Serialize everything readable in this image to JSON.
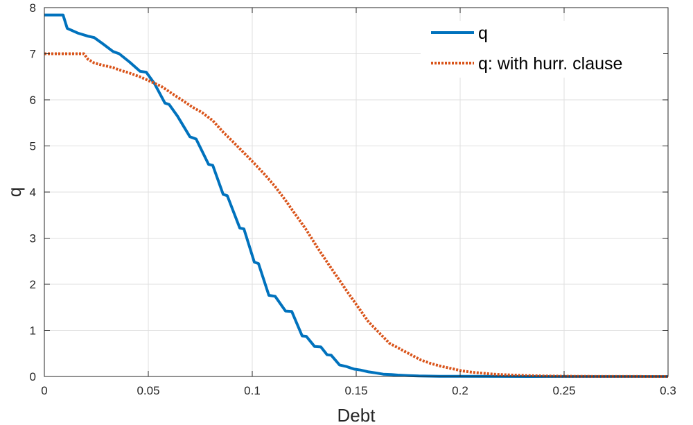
{
  "chart_data": {
    "type": "line",
    "title": "",
    "xlabel": "Debt",
    "ylabel": "q",
    "xlim": [
      0,
      0.3
    ],
    "ylim": [
      0,
      8
    ],
    "xticks": [
      0,
      0.05,
      0.1,
      0.15,
      0.2,
      0.25,
      0.3
    ],
    "xtick_labels": [
      "0",
      "0.05",
      "0.1",
      "0.15",
      "0.2",
      "0.25",
      "0.3"
    ],
    "yticks": [
      0,
      1,
      2,
      3,
      4,
      5,
      6,
      7,
      8
    ],
    "ytick_labels": [
      "0",
      "1",
      "2",
      "3",
      "4",
      "5",
      "6",
      "7",
      "8"
    ],
    "grid": true,
    "legend_position": "top-right",
    "series": [
      {
        "name": "q",
        "color": "#0072BD",
        "style": "solid",
        "x": [
          0,
          0.009,
          0.011,
          0.016,
          0.021,
          0.024,
          0.028,
          0.033,
          0.036,
          0.041,
          0.046,
          0.049,
          0.053,
          0.058,
          0.06,
          0.064,
          0.07,
          0.073,
          0.079,
          0.081,
          0.086,
          0.088,
          0.094,
          0.096,
          0.101,
          0.103,
          0.108,
          0.111,
          0.116,
          0.119,
          0.124,
          0.126,
          0.13,
          0.133,
          0.136,
          0.138,
          0.142,
          0.145,
          0.149,
          0.152,
          0.156,
          0.159,
          0.163,
          0.167,
          0.17,
          0.175,
          0.18,
          0.19,
          0.2,
          0.22,
          0.25,
          0.3
        ],
        "y": [
          7.84,
          7.84,
          7.55,
          7.45,
          7.38,
          7.35,
          7.22,
          7.05,
          7.0,
          6.82,
          6.62,
          6.6,
          6.35,
          5.93,
          5.9,
          5.65,
          5.2,
          5.15,
          4.6,
          4.58,
          3.95,
          3.92,
          3.22,
          3.2,
          2.48,
          2.45,
          1.76,
          1.74,
          1.42,
          1.41,
          0.88,
          0.87,
          0.65,
          0.64,
          0.47,
          0.46,
          0.25,
          0.22,
          0.16,
          0.14,
          0.1,
          0.08,
          0.05,
          0.04,
          0.03,
          0.02,
          0.01,
          0.005,
          0.003,
          0.001,
          0.0,
          0.0
        ]
      },
      {
        "name": "q: with hurr. clause",
        "color": "#D95319",
        "style": "dotted",
        "x": [
          0,
          0.019,
          0.021,
          0.024,
          0.028,
          0.033,
          0.036,
          0.041,
          0.046,
          0.051,
          0.056,
          0.061,
          0.066,
          0.071,
          0.076,
          0.081,
          0.086,
          0.091,
          0.096,
          0.101,
          0.106,
          0.111,
          0.116,
          0.121,
          0.126,
          0.131,
          0.136,
          0.141,
          0.146,
          0.151,
          0.156,
          0.161,
          0.166,
          0.171,
          0.176,
          0.181,
          0.186,
          0.191,
          0.196,
          0.201,
          0.206,
          0.211,
          0.216,
          0.22,
          0.226,
          0.232,
          0.24,
          0.25,
          0.26,
          0.28,
          0.3
        ],
        "y": [
          7.0,
          7.0,
          6.88,
          6.8,
          6.75,
          6.7,
          6.65,
          6.58,
          6.5,
          6.4,
          6.3,
          6.15,
          6.0,
          5.85,
          5.72,
          5.55,
          5.3,
          5.08,
          4.85,
          4.62,
          4.38,
          4.12,
          3.82,
          3.5,
          3.18,
          2.82,
          2.48,
          2.15,
          1.82,
          1.5,
          1.18,
          0.95,
          0.72,
          0.6,
          0.48,
          0.36,
          0.28,
          0.22,
          0.17,
          0.12,
          0.09,
          0.07,
          0.05,
          0.04,
          0.03,
          0.02,
          0.01,
          0.006,
          0.003,
          0.001,
          0.0
        ]
      }
    ]
  }
}
